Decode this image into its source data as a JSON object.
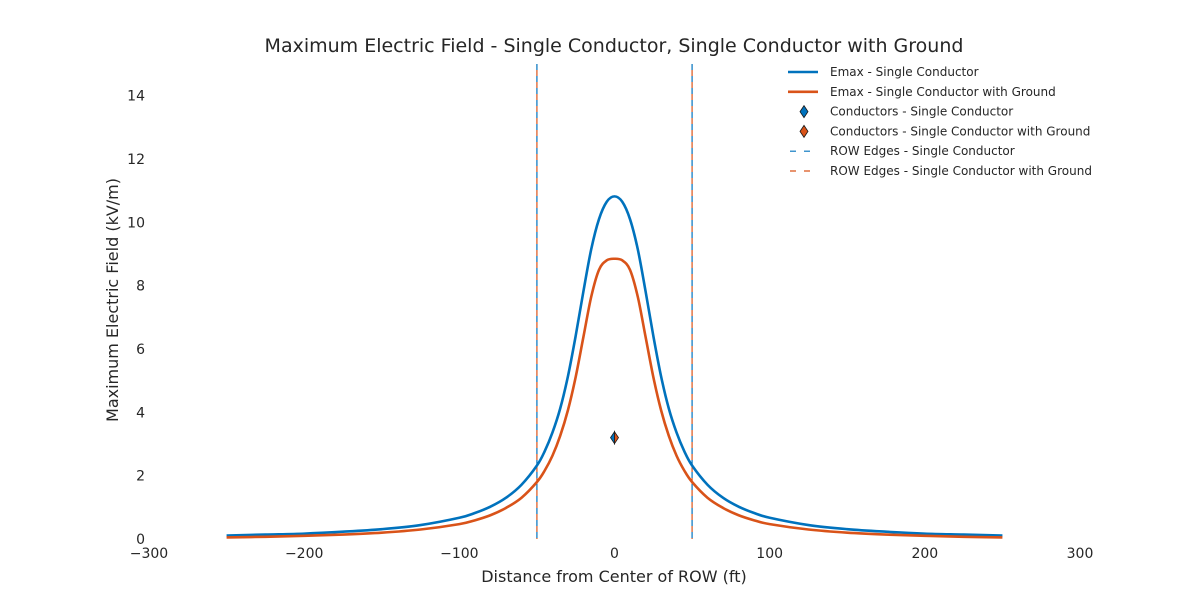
{
  "chart_data": {
    "type": "line",
    "title": "Maximum Electric Field - Single Conductor, Single Conductor with Ground",
    "xlabel": "Distance from Center of ROW (ft)",
    "ylabel": "Maximum Electric Field (kV/m)",
    "xlim": [
      -300,
      300
    ],
    "ylim": [
      0,
      15
    ],
    "xticks": [
      -300,
      -200,
      -100,
      0,
      100,
      200,
      300
    ],
    "xtick_labels": [
      "−300",
      "−200",
      "−100",
      "0",
      "100",
      "200",
      "300"
    ],
    "yticks": [
      0,
      2,
      4,
      6,
      8,
      10,
      12,
      14
    ],
    "ytick_labels": [
      "0",
      "2",
      "4",
      "6",
      "8",
      "10",
      "12",
      "14"
    ],
    "grid": false,
    "legend_position": "top-right",
    "series": [
      {
        "name": "Emax - Single Conductor",
        "color": "#0072BD",
        "x": [
          -250,
          -225,
          -200,
          -175,
          -150,
          -125,
          -100,
          -90,
          -80,
          -70,
          -60,
          -50,
          -45,
          -40,
          -35,
          -30,
          -25,
          -20,
          -15,
          -10,
          -5,
          0,
          5,
          10,
          15,
          20,
          25,
          30,
          35,
          40,
          45,
          50,
          60,
          70,
          80,
          90,
          100,
          125,
          150,
          175,
          200,
          225,
          250
        ],
        "y": [
          0.11,
          0.14,
          0.17,
          0.23,
          0.31,
          0.44,
          0.67,
          0.82,
          1.02,
          1.3,
          1.71,
          2.32,
          2.77,
          3.36,
          4.12,
          5.14,
          6.42,
          7.83,
          9.15,
          10.1,
          10.65,
          10.82,
          10.65,
          10.1,
          9.15,
          7.83,
          6.42,
          5.14,
          4.12,
          3.36,
          2.77,
          2.32,
          1.71,
          1.3,
          1.02,
          0.82,
          0.67,
          0.44,
          0.31,
          0.23,
          0.17,
          0.14,
          0.11
        ]
      },
      {
        "name": "Emax - Single Conductor with Ground",
        "color": "#D95319",
        "x": [
          -250,
          -225,
          -200,
          -175,
          -150,
          -125,
          -100,
          -90,
          -80,
          -70,
          -60,
          -50,
          -45,
          -40,
          -35,
          -30,
          -25,
          -20,
          -15,
          -10,
          -5,
          0,
          5,
          10,
          15,
          20,
          25,
          30,
          35,
          40,
          45,
          50,
          60,
          70,
          80,
          90,
          100,
          125,
          150,
          175,
          200,
          225,
          250
        ],
        "y": [
          0.05,
          0.07,
          0.1,
          0.14,
          0.2,
          0.3,
          0.47,
          0.59,
          0.75,
          0.98,
          1.3,
          1.8,
          2.16,
          2.63,
          3.26,
          4.07,
          5.12,
          6.39,
          7.65,
          8.5,
          8.8,
          8.85,
          8.8,
          8.5,
          7.65,
          6.39,
          5.12,
          4.07,
          3.26,
          2.63,
          2.16,
          1.8,
          1.3,
          0.98,
          0.75,
          0.59,
          0.47,
          0.3,
          0.2,
          0.14,
          0.1,
          0.07,
          0.05
        ]
      }
    ],
    "conductors": [
      {
        "name": "Conductors - Single Conductor",
        "color": "#0072BD",
        "x": 0,
        "y": 3.2
      },
      {
        "name": "Conductors - Single Conductor with Ground",
        "color": "#D95319",
        "x": 0,
        "y": 3.2
      }
    ],
    "row_edges": [
      {
        "name": "ROW Edges - Single Conductor",
        "color": "#0072BD",
        "x": [
          -50,
          50
        ]
      },
      {
        "name": "ROW Edges - Single Conductor with Ground",
        "color": "#D95319",
        "x": [
          -50,
          50
        ]
      }
    ],
    "legend": [
      {
        "label": "Emax - Single Conductor",
        "kind": "line",
        "color": "#0072BD"
      },
      {
        "label": "Emax - Single Conductor with Ground",
        "kind": "line",
        "color": "#D95319"
      },
      {
        "label": "Conductors - Single Conductor",
        "kind": "diamond",
        "color": "#0072BD"
      },
      {
        "label": "Conductors - Single Conductor with Ground",
        "kind": "diamond",
        "color": "#D95319"
      },
      {
        "label": "ROW Edges - Single Conductor",
        "kind": "dash",
        "color": "#0072BD"
      },
      {
        "label": "ROW Edges - Single Conductor with Ground",
        "kind": "dash",
        "color": "#D95319"
      }
    ]
  }
}
